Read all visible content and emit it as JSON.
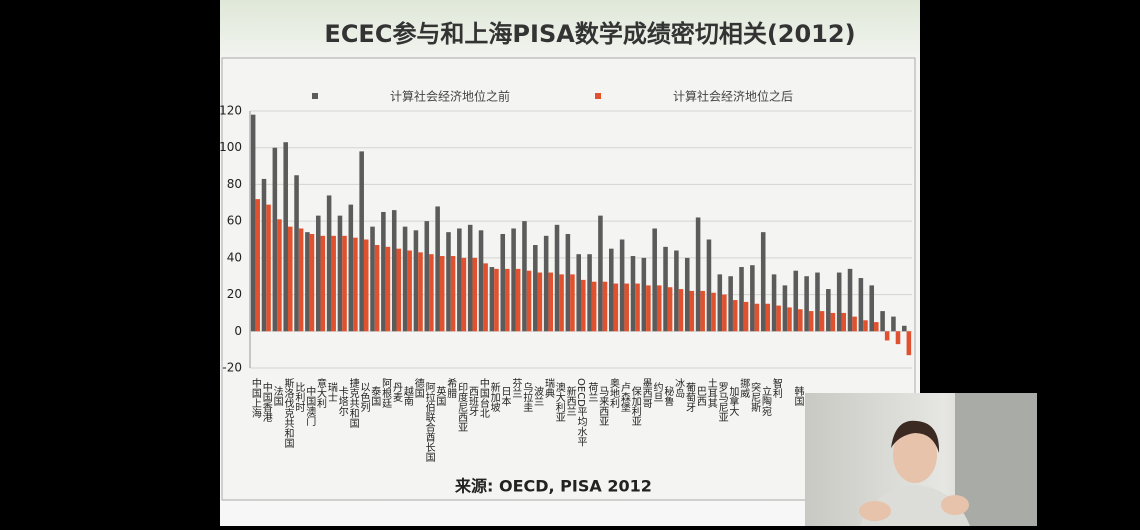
{
  "chart_data": {
    "type": "bar",
    "title": "ECEC参与和上海PISA数学成绩密切相关(2012)",
    "source": "来源: OECD, PISA 2012",
    "categories": [
      "中国上海",
      "中国香港",
      "法国",
      "斯洛伐克共和国",
      "比利时",
      "中国澳门",
      "意大利",
      "瑞士",
      "卡塔尔",
      "捷克共和国",
      "以色列",
      "泰国",
      "阿根廷",
      "丹麦",
      "越南",
      "德国",
      "阿拉伯联合酋长国",
      "英国",
      "希腊",
      "印度尼西亚",
      "西班牙",
      "中国台北",
      "新加坡",
      "日本",
      "芬兰",
      "乌拉圭",
      "波兰",
      "瑞典",
      "澳大利亚",
      "新西兰",
      "OECD平均水平",
      "荷兰",
      "马来西亚",
      "奥地利",
      "卢森堡",
      "保加利亚",
      "墨西哥",
      "约旦",
      "秘鲁",
      "冰岛",
      "葡萄牙",
      "巴西",
      "土耳其",
      "罗马尼亚",
      "加拿大",
      "挪威",
      "突尼斯",
      "立陶宛",
      "智利",
      null,
      "韩国",
      null,
      null,
      null,
      null,
      null,
      null,
      null,
      null,
      null,
      null
    ],
    "series": [
      {
        "name": "计算社会经济地位之前",
        "color": "#5b5b5b",
        "values": [
          118,
          83,
          100,
          103,
          85,
          54,
          63,
          74,
          63,
          69,
          98,
          57,
          65,
          66,
          57,
          55,
          60,
          68,
          54,
          56,
          58,
          55,
          35,
          53,
          56,
          60,
          47,
          52,
          58,
          53,
          42,
          42,
          63,
          45,
          50,
          41,
          40,
          56,
          46,
          44,
          40,
          62,
          50,
          31,
          30,
          35,
          36,
          54,
          31,
          25,
          33,
          30,
          32,
          23,
          32,
          34,
          29,
          25,
          11,
          8,
          3
        ]
      },
      {
        "name": "计算社会经济地位之后",
        "color": "#e0522f",
        "values": [
          72,
          69,
          61,
          57,
          56,
          53,
          52,
          52,
          52,
          51,
          50,
          47,
          46,
          45,
          44,
          43,
          42,
          41,
          41,
          40,
          40,
          37,
          34,
          34,
          34,
          33,
          32,
          32,
          31,
          31,
          28,
          27,
          27,
          26,
          26,
          26,
          25,
          25,
          24,
          23,
          22,
          22,
          21,
          20,
          17,
          16,
          15,
          15,
          14,
          13,
          12,
          11,
          11,
          10,
          10,
          8,
          6,
          5,
          -5,
          -7,
          -13
        ]
      }
    ],
    "ylim": [
      -20,
      120
    ],
    "yticks": [
      -20,
      0,
      20,
      40,
      60,
      80,
      100,
      120
    ],
    "grid": true
  }
}
